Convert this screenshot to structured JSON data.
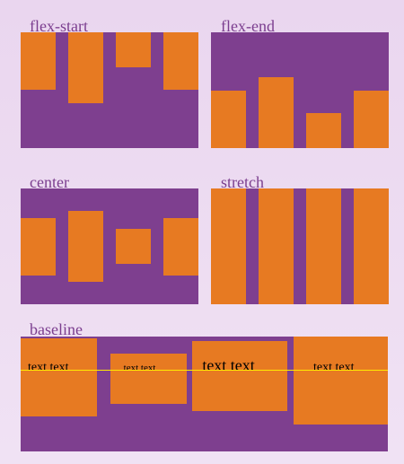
{
  "panels": {
    "flex_start": {
      "label": "flex-start",
      "items": 4
    },
    "flex_end": {
      "label": "flex-end",
      "items": 4
    },
    "center": {
      "label": "center",
      "items": 4
    },
    "stretch": {
      "label": "stretch",
      "items": 4
    },
    "baseline": {
      "label": "baseline",
      "items": [
        {
          "text": "text text"
        },
        {
          "text": "text text"
        },
        {
          "text": "text text"
        },
        {
          "text": "text text"
        }
      ]
    }
  },
  "colors": {
    "container": "#7e3f8f",
    "item": "#e77a22",
    "label": "#7b3e8f",
    "baseline_line": "#ffea00",
    "background": "#ead6ef"
  }
}
